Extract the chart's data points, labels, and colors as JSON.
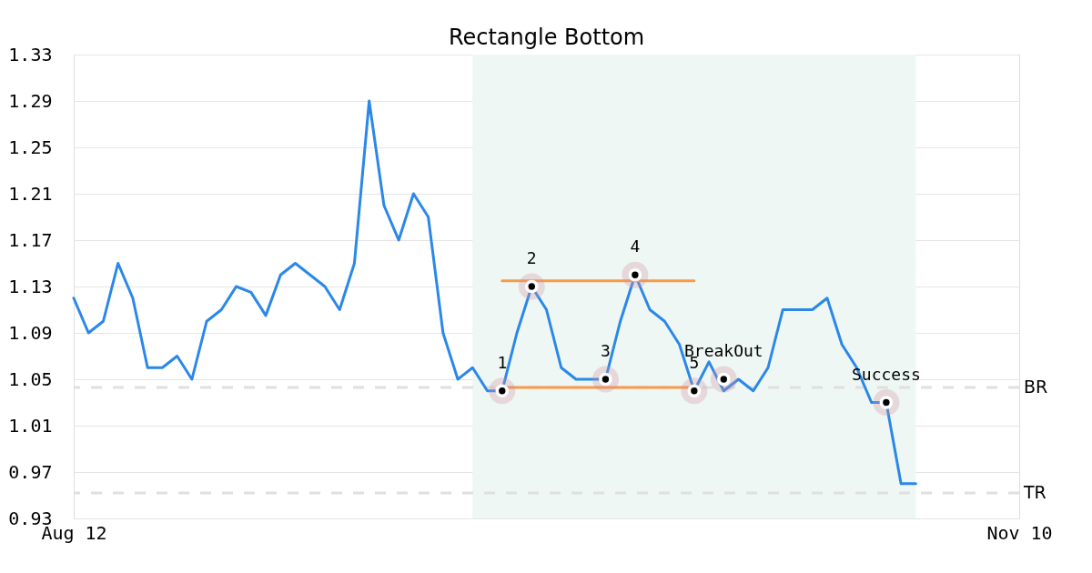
{
  "chart_data": {
    "type": "line",
    "title": "Rectangle Bottom",
    "categories": [
      "Aug 12",
      null,
      null,
      null,
      null,
      null,
      null,
      null,
      null,
      null,
      null,
      null,
      null,
      null,
      null,
      null,
      null,
      null,
      null,
      null,
      null,
      null,
      null,
      null,
      null,
      null,
      null,
      null,
      null,
      null,
      null,
      null,
      null,
      null,
      null,
      null,
      null,
      null,
      null,
      null,
      null,
      null,
      null,
      null,
      null,
      null,
      null,
      null,
      null,
      null,
      null,
      null,
      null,
      null,
      null,
      null,
      null,
      null,
      null,
      null,
      null,
      null,
      null,
      null,
      "Nov 10"
    ],
    "ylim": [
      0.93,
      1.33
    ],
    "yticks": [
      0.93,
      0.97,
      1.01,
      1.05,
      1.09,
      1.13,
      1.17,
      1.21,
      1.25,
      1.29,
      1.33
    ],
    "grid": "y",
    "line_style": "solid",
    "series": [
      {
        "color": "#2b88e8",
        "values": [
          1.12,
          1.09,
          1.1,
          1.15,
          1.12,
          1.06,
          1.06,
          1.07,
          1.05,
          1.1,
          1.11,
          1.13,
          1.125,
          1.105,
          1.14,
          1.15,
          1.14,
          1.13,
          1.11,
          1.15,
          1.29,
          1.2,
          1.17,
          1.21,
          1.19,
          1.09,
          1.05,
          1.06,
          1.04,
          1.04,
          1.09,
          1.13,
          1.11,
          1.06,
          1.05,
          1.05,
          1.05,
          1.1,
          1.14,
          1.11,
          1.1,
          1.08,
          1.04,
          1.065,
          1.04,
          1.05,
          1.04,
          1.06,
          1.11,
          1.11,
          1.11,
          1.12,
          1.08,
          1.06,
          1.03,
          1.03,
          0.96,
          0.96,
          null,
          null,
          null,
          null,
          null,
          null,
          null
        ]
      },
      {
        "type": "line",
        "color": "#f99a4a",
        "values": [
          null,
          null,
          null,
          null,
          null,
          null,
          null,
          null,
          null,
          null,
          null,
          null,
          null,
          null,
          null,
          null,
          null,
          null,
          null,
          null,
          null,
          null,
          null,
          null,
          null,
          null,
          null,
          null,
          null,
          1.135,
          1.135,
          1.135,
          1.135,
          1.135,
          1.135,
          1.135,
          1.135,
          1.135,
          1.135,
          1.135,
          1.135,
          1.135,
          1.135,
          null,
          null,
          null,
          null,
          null,
          null,
          null,
          null,
          null,
          null,
          null,
          null,
          null,
          null,
          null,
          null,
          null,
          null,
          null,
          null,
          null,
          null
        ]
      },
      {
        "type": "line",
        "color": "#f99a4a",
        "values": [
          null,
          null,
          null,
          null,
          null,
          null,
          null,
          null,
          null,
          null,
          null,
          null,
          null,
          null,
          null,
          null,
          null,
          null,
          null,
          null,
          null,
          null,
          null,
          null,
          null,
          null,
          null,
          null,
          null,
          1.043,
          1.043,
          1.043,
          1.043,
          1.043,
          1.043,
          1.043,
          1.043,
          1.043,
          1.043,
          1.043,
          1.043,
          1.043,
          1.043,
          null,
          null,
          null,
          null,
          null,
          null,
          null,
          null,
          null,
          null,
          null,
          null,
          null,
          null,
          null,
          null,
          null,
          null,
          null,
          null,
          null,
          null
        ]
      },
      {
        "type": "scatter",
        "color": "#000000",
        "marker": "circle",
        "values": [
          null,
          null,
          null,
          null,
          null,
          null,
          null,
          null,
          null,
          null,
          null,
          null,
          null,
          null,
          null,
          null,
          null,
          null,
          null,
          null,
          null,
          null,
          null,
          null,
          null,
          null,
          null,
          null,
          null,
          1.04,
          null,
          1.13,
          null,
          null,
          null,
          null,
          1.05,
          null,
          1.14,
          null,
          null,
          null,
          1.04,
          null,
          1.05,
          null,
          null,
          null,
          null,
          null,
          null,
          null,
          null,
          null,
          null,
          1.03,
          null,
          null,
          null,
          null,
          null,
          null,
          null,
          null,
          null
        ]
      }
    ],
    "annotations": [
      {
        "text": "1",
        "y": 1.04
      },
      {
        "text": "2",
        "y": 1.13
      },
      {
        "text": "3",
        "y": 1.05
      },
      {
        "text": "4",
        "y": 1.14
      },
      {
        "text": "5",
        "y": 1.04
      },
      {
        "text": "BreakOut",
        "y": 1.05
      },
      {
        "text": "Success",
        "y": 1.03
      }
    ],
    "ref_lines": [
      {
        "axis": "y",
        "value": 1.043,
        "label": "BR",
        "color": "#e0e0e0",
        "line_style": "dashed"
      },
      {
        "axis": "y",
        "value": 0.952,
        "label": "TR",
        "color": "#e0e0e0",
        "line_style": "dashed"
      }
    ]
  }
}
